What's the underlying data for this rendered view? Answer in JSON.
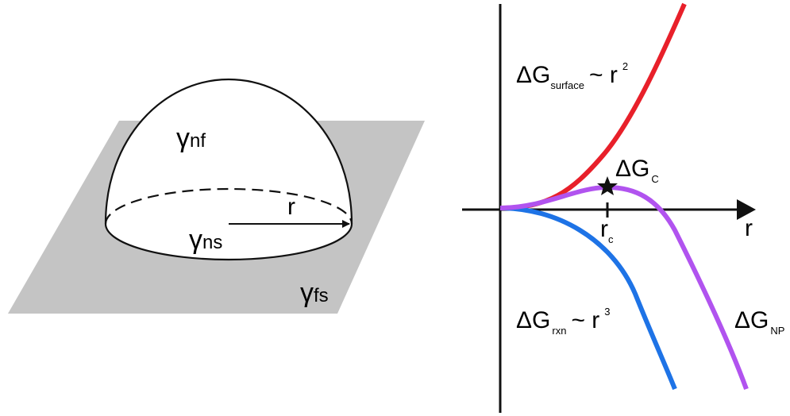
{
  "surface_diagram": {
    "labels": [
      {
        "symbol": "γ",
        "subscript": "nf"
      },
      {
        "symbol": "γ",
        "subscript": "ns"
      },
      {
        "symbol": "γ",
        "subscript": "fs"
      }
    ],
    "radius": "r"
  },
  "energy_diagram": {
    "axis_label": "r",
    "critical_radius": {
      "symbol": "r",
      "subscript": "c"
    },
    "critical_energy": {
      "symbol": "ΔG",
      "subscript": "C"
    },
    "surface": {
      "symbol": "ΔG",
      "subscript": "surface",
      "relation": "~ r",
      "exponent": "2"
    },
    "reaction": {
      "symbol": "ΔG",
      "subscript": "rxn",
      "relation": "~ r",
      "exponent": "3"
    },
    "nanoparticle": {
      "symbol": "ΔG",
      "subscript": "NP"
    }
  }
}
